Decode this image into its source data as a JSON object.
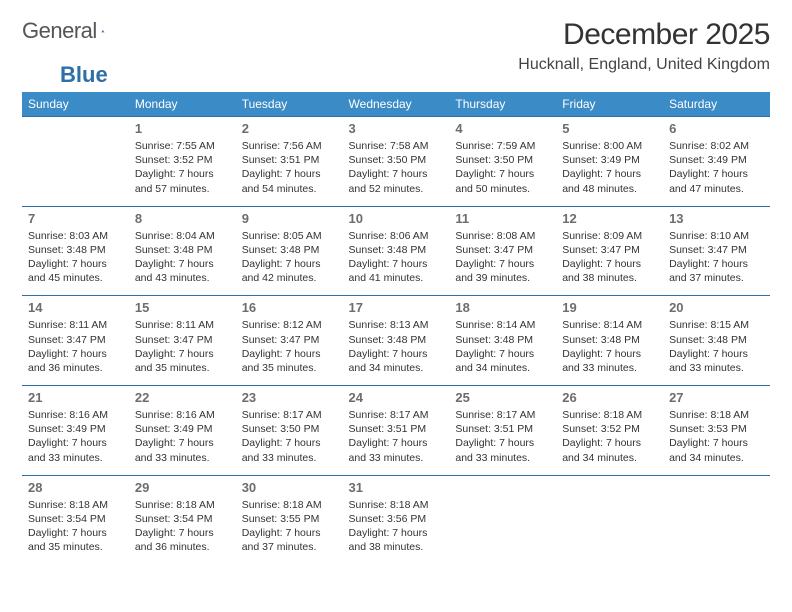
{
  "brand": {
    "part1": "General",
    "part2": "Blue"
  },
  "title": "December 2025",
  "location": "Hucknall, England, United Kingdom",
  "colors": {
    "header_bg": "#3b8bc7",
    "border": "#2f6fa7",
    "brand_gray": "#555555",
    "brand_blue": "#2f6fa7",
    "text": "#333333",
    "daynum": "#6d6d6d",
    "background": "#ffffff"
  },
  "weekdays": [
    "Sunday",
    "Monday",
    "Tuesday",
    "Wednesday",
    "Thursday",
    "Friday",
    "Saturday"
  ],
  "weeks": [
    [
      null,
      {
        "n": "1",
        "sr": "7:55 AM",
        "ss": "3:52 PM",
        "dl": "7 hours and 57 minutes."
      },
      {
        "n": "2",
        "sr": "7:56 AM",
        "ss": "3:51 PM",
        "dl": "7 hours and 54 minutes."
      },
      {
        "n": "3",
        "sr": "7:58 AM",
        "ss": "3:50 PM",
        "dl": "7 hours and 52 minutes."
      },
      {
        "n": "4",
        "sr": "7:59 AM",
        "ss": "3:50 PM",
        "dl": "7 hours and 50 minutes."
      },
      {
        "n": "5",
        "sr": "8:00 AM",
        "ss": "3:49 PM",
        "dl": "7 hours and 48 minutes."
      },
      {
        "n": "6",
        "sr": "8:02 AM",
        "ss": "3:49 PM",
        "dl": "7 hours and 47 minutes."
      }
    ],
    [
      {
        "n": "7",
        "sr": "8:03 AM",
        "ss": "3:48 PM",
        "dl": "7 hours and 45 minutes."
      },
      {
        "n": "8",
        "sr": "8:04 AM",
        "ss": "3:48 PM",
        "dl": "7 hours and 43 minutes."
      },
      {
        "n": "9",
        "sr": "8:05 AM",
        "ss": "3:48 PM",
        "dl": "7 hours and 42 minutes."
      },
      {
        "n": "10",
        "sr": "8:06 AM",
        "ss": "3:48 PM",
        "dl": "7 hours and 41 minutes."
      },
      {
        "n": "11",
        "sr": "8:08 AM",
        "ss": "3:47 PM",
        "dl": "7 hours and 39 minutes."
      },
      {
        "n": "12",
        "sr": "8:09 AM",
        "ss": "3:47 PM",
        "dl": "7 hours and 38 minutes."
      },
      {
        "n": "13",
        "sr": "8:10 AM",
        "ss": "3:47 PM",
        "dl": "7 hours and 37 minutes."
      }
    ],
    [
      {
        "n": "14",
        "sr": "8:11 AM",
        "ss": "3:47 PM",
        "dl": "7 hours and 36 minutes."
      },
      {
        "n": "15",
        "sr": "8:11 AM",
        "ss": "3:47 PM",
        "dl": "7 hours and 35 minutes."
      },
      {
        "n": "16",
        "sr": "8:12 AM",
        "ss": "3:47 PM",
        "dl": "7 hours and 35 minutes."
      },
      {
        "n": "17",
        "sr": "8:13 AM",
        "ss": "3:48 PM",
        "dl": "7 hours and 34 minutes."
      },
      {
        "n": "18",
        "sr": "8:14 AM",
        "ss": "3:48 PM",
        "dl": "7 hours and 34 minutes."
      },
      {
        "n": "19",
        "sr": "8:14 AM",
        "ss": "3:48 PM",
        "dl": "7 hours and 33 minutes."
      },
      {
        "n": "20",
        "sr": "8:15 AM",
        "ss": "3:48 PM",
        "dl": "7 hours and 33 minutes."
      }
    ],
    [
      {
        "n": "21",
        "sr": "8:16 AM",
        "ss": "3:49 PM",
        "dl": "7 hours and 33 minutes."
      },
      {
        "n": "22",
        "sr": "8:16 AM",
        "ss": "3:49 PM",
        "dl": "7 hours and 33 minutes."
      },
      {
        "n": "23",
        "sr": "8:17 AM",
        "ss": "3:50 PM",
        "dl": "7 hours and 33 minutes."
      },
      {
        "n": "24",
        "sr": "8:17 AM",
        "ss": "3:51 PM",
        "dl": "7 hours and 33 minutes."
      },
      {
        "n": "25",
        "sr": "8:17 AM",
        "ss": "3:51 PM",
        "dl": "7 hours and 33 minutes."
      },
      {
        "n": "26",
        "sr": "8:18 AM",
        "ss": "3:52 PM",
        "dl": "7 hours and 34 minutes."
      },
      {
        "n": "27",
        "sr": "8:18 AM",
        "ss": "3:53 PM",
        "dl": "7 hours and 34 minutes."
      }
    ],
    [
      {
        "n": "28",
        "sr": "8:18 AM",
        "ss": "3:54 PM",
        "dl": "7 hours and 35 minutes."
      },
      {
        "n": "29",
        "sr": "8:18 AM",
        "ss": "3:54 PM",
        "dl": "7 hours and 36 minutes."
      },
      {
        "n": "30",
        "sr": "8:18 AM",
        "ss": "3:55 PM",
        "dl": "7 hours and 37 minutes."
      },
      {
        "n": "31",
        "sr": "8:18 AM",
        "ss": "3:56 PM",
        "dl": "7 hours and 38 minutes."
      },
      null,
      null,
      null
    ]
  ],
  "labels": {
    "sunrise": "Sunrise:",
    "sunset": "Sunset:",
    "daylight": "Daylight:"
  }
}
